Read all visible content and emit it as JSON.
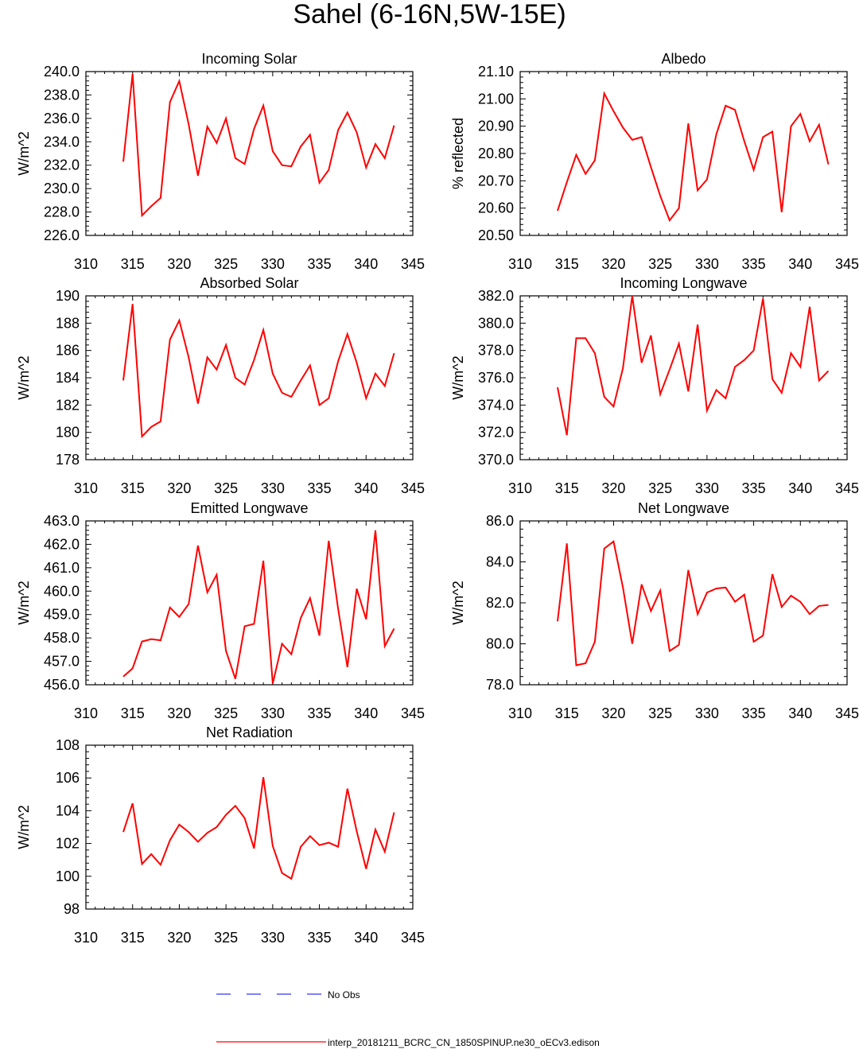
{
  "figure_title": "Sahel (6-16N,5W-15E)",
  "colors": {
    "model": "#ff0000",
    "obs": "#3333ff",
    "axis": "#000000"
  },
  "legend": [
    {
      "label": "No Obs",
      "style": "dashed",
      "color": "#3333ff"
    },
    {
      "label": "interp_20181211_BCRC_CN_1850SPINUP.ne30_oECv3.edison",
      "style": "solid",
      "color": "#ff0000"
    }
  ],
  "chart_data": [
    {
      "type": "line",
      "title": "Incoming Solar",
      "ylabel": "W/m^2",
      "xlim": [
        310,
        345
      ],
      "ylim": [
        226,
        240
      ],
      "xticks": [
        310,
        315,
        320,
        325,
        330,
        335,
        340,
        345
      ],
      "yticks": [
        226,
        228,
        230,
        232,
        234,
        236,
        238,
        240
      ],
      "ytick_labels": [
        "226.0",
        "228.0",
        "230.0",
        "232.0",
        "234.0",
        "236.0",
        "238.0",
        "240.0"
      ],
      "x": [
        314,
        315,
        316,
        317,
        318,
        319,
        320,
        321,
        322,
        323,
        324,
        325,
        326,
        327,
        328,
        329,
        330,
        331,
        332,
        333,
        334,
        335,
        336,
        337,
        338,
        339,
        340,
        341,
        342,
        343
      ],
      "series": [
        {
          "values": [
            232.3,
            239.8,
            227.7,
            228.5,
            229.2,
            237.4,
            239.2,
            235.5,
            231.1,
            235.3,
            233.9,
            236.0,
            232.6,
            232.1,
            235.1,
            237.1,
            233.2,
            232.0,
            231.9,
            233.6,
            234.6,
            230.5,
            231.6,
            235.0,
            236.5,
            234.8,
            231.8,
            233.8,
            232.6,
            235.4
          ]
        }
      ]
    },
    {
      "type": "line",
      "title": "Albedo",
      "ylabel": "% reflected",
      "xlim": [
        310,
        345
      ],
      "ylim": [
        20.5,
        21.1
      ],
      "xticks": [
        310,
        315,
        320,
        325,
        330,
        335,
        340,
        345
      ],
      "yticks": [
        20.5,
        20.6,
        20.7,
        20.8,
        20.9,
        21.0,
        21.1
      ],
      "ytick_labels": [
        "20.50",
        "20.60",
        "20.70",
        "20.80",
        "20.90",
        "21.00",
        "21.10"
      ],
      "x": [
        314,
        315,
        316,
        317,
        318,
        319,
        320,
        321,
        322,
        323,
        324,
        325,
        326,
        327,
        328,
        329,
        330,
        331,
        332,
        333,
        334,
        335,
        336,
        337,
        338,
        339,
        340,
        341,
        342,
        343
      ],
      "series": [
        {
          "values": [
            20.59,
            20.695,
            20.795,
            20.725,
            20.775,
            21.02,
            20.955,
            20.895,
            20.85,
            20.86,
            20.75,
            20.645,
            20.555,
            20.6,
            20.91,
            20.665,
            20.705,
            20.87,
            20.975,
            20.96,
            20.845,
            20.74,
            20.86,
            20.88,
            20.585,
            20.9,
            20.945,
            20.845,
            20.905,
            20.76
          ]
        }
      ]
    },
    {
      "type": "line",
      "title": "Absorbed Solar",
      "ylabel": "W/m^2",
      "xlim": [
        310,
        345
      ],
      "ylim": [
        178,
        190
      ],
      "xticks": [
        310,
        315,
        320,
        325,
        330,
        335,
        340,
        345
      ],
      "yticks": [
        178,
        180,
        182,
        184,
        186,
        188,
        190
      ],
      "ytick_labels": [
        "178",
        "180",
        "182",
        "184",
        "186",
        "188",
        "190"
      ],
      "x": [
        314,
        315,
        316,
        317,
        318,
        319,
        320,
        321,
        322,
        323,
        324,
        325,
        326,
        327,
        328,
        329,
        330,
        331,
        332,
        333,
        334,
        335,
        336,
        337,
        338,
        339,
        340,
        341,
        342,
        343
      ],
      "series": [
        {
          "values": [
            183.8,
            189.4,
            179.7,
            180.4,
            180.8,
            186.8,
            188.2,
            185.5,
            182.1,
            185.5,
            184.6,
            186.4,
            184.0,
            183.5,
            185.3,
            187.5,
            184.3,
            182.9,
            182.6,
            183.8,
            184.9,
            182.0,
            182.5,
            185.2,
            187.2,
            185.1,
            182.5,
            184.3,
            183.4,
            185.8
          ]
        }
      ]
    },
    {
      "type": "line",
      "title": "Incoming Longwave",
      "ylabel": "W/m^2",
      "xlim": [
        310,
        345
      ],
      "ylim": [
        370,
        382
      ],
      "xticks": [
        310,
        315,
        320,
        325,
        330,
        335,
        340,
        345
      ],
      "yticks": [
        370,
        372,
        374,
        376,
        378,
        380,
        382
      ],
      "ytick_labels": [
        "370.0",
        "372.0",
        "374.0",
        "376.0",
        "378.0",
        "380.0",
        "382.0"
      ],
      "x": [
        314,
        315,
        316,
        317,
        318,
        319,
        320,
        321,
        322,
        323,
        324,
        325,
        326,
        327,
        328,
        329,
        330,
        331,
        332,
        333,
        334,
        335,
        336,
        337,
        338,
        339,
        340,
        341,
        342,
        343
      ],
      "series": [
        {
          "values": [
            375.3,
            371.8,
            378.9,
            378.9,
            377.8,
            374.6,
            373.9,
            376.7,
            382.0,
            377.1,
            379.1,
            374.8,
            376.6,
            378.5,
            375.0,
            379.9,
            373.6,
            375.1,
            374.5,
            376.8,
            377.3,
            378.0,
            381.8,
            375.9,
            374.9,
            377.8,
            376.8,
            381.2,
            375.8,
            376.5
          ]
        }
      ]
    },
    {
      "type": "line",
      "title": "Emitted Longwave",
      "ylabel": "W/m^2",
      "xlim": [
        310,
        345
      ],
      "ylim": [
        456,
        463
      ],
      "xticks": [
        310,
        315,
        320,
        325,
        330,
        335,
        340,
        345
      ],
      "yticks": [
        456,
        457,
        458,
        459,
        460,
        461,
        462,
        463
      ],
      "ytick_labels": [
        "456.0",
        "457.0",
        "458.0",
        "459.0",
        "460.0",
        "461.0",
        "462.0",
        "463.0"
      ],
      "x": [
        314,
        315,
        316,
        317,
        318,
        319,
        320,
        321,
        322,
        323,
        324,
        325,
        326,
        327,
        328,
        329,
        330,
        331,
        332,
        333,
        334,
        335,
        336,
        337,
        338,
        339,
        340,
        341,
        342,
        343
      ],
      "series": [
        {
          "values": [
            456.35,
            456.7,
            457.85,
            457.95,
            457.9,
            459.3,
            458.9,
            459.45,
            461.95,
            459.95,
            460.7,
            457.45,
            456.25,
            458.5,
            458.6,
            461.3,
            456.05,
            457.75,
            457.3,
            458.85,
            459.7,
            458.1,
            462.15,
            459.25,
            456.75,
            460.1,
            458.8,
            462.6,
            457.65,
            458.4
          ]
        }
      ]
    },
    {
      "type": "line",
      "title": "Net Longwave",
      "ylabel": "W/m^2",
      "xlim": [
        310,
        345
      ],
      "ylim": [
        78,
        86
      ],
      "xticks": [
        310,
        315,
        320,
        325,
        330,
        335,
        340,
        345
      ],
      "yticks": [
        78,
        80,
        82,
        84,
        86
      ],
      "ytick_labels": [
        "78.0",
        "80.0",
        "82.0",
        "84.0",
        "86.0"
      ],
      "x": [
        314,
        315,
        316,
        317,
        318,
        319,
        320,
        321,
        322,
        323,
        324,
        325,
        326,
        327,
        328,
        329,
        330,
        331,
        332,
        333,
        334,
        335,
        336,
        337,
        338,
        339,
        340,
        341,
        342,
        343
      ],
      "series": [
        {
          "values": [
            81.1,
            84.9,
            78.95,
            79.05,
            80.1,
            84.65,
            85.0,
            82.75,
            80.0,
            82.9,
            81.6,
            82.6,
            79.65,
            79.95,
            83.6,
            81.45,
            82.5,
            82.7,
            82.75,
            82.05,
            82.4,
            80.1,
            80.4,
            83.4,
            81.8,
            82.35,
            82.05,
            81.45,
            81.85,
            81.9
          ]
        }
      ]
    },
    {
      "type": "line",
      "title": "Net Radiation",
      "ylabel": "W/m^2",
      "xlim": [
        310,
        345
      ],
      "ylim": [
        98,
        108
      ],
      "xticks": [
        310,
        315,
        320,
        325,
        330,
        335,
        340,
        345
      ],
      "yticks": [
        98,
        100,
        102,
        104,
        106,
        108
      ],
      "ytick_labels": [
        "98",
        "100",
        "102",
        "104",
        "106",
        "108"
      ],
      "x": [
        314,
        315,
        316,
        317,
        318,
        319,
        320,
        321,
        322,
        323,
        324,
        325,
        326,
        327,
        328,
        329,
        330,
        331,
        332,
        333,
        334,
        335,
        336,
        337,
        338,
        339,
        340,
        341,
        342,
        343
      ],
      "series": [
        {
          "values": [
            102.7,
            104.45,
            100.75,
            101.35,
            100.7,
            102.2,
            103.15,
            102.7,
            102.1,
            102.65,
            103.0,
            103.75,
            104.3,
            103.55,
            101.7,
            106.05,
            101.85,
            100.2,
            99.85,
            101.8,
            102.45,
            101.9,
            102.05,
            101.8,
            105.35,
            102.75,
            100.45,
            102.85,
            101.5,
            103.9
          ]
        }
      ]
    }
  ]
}
